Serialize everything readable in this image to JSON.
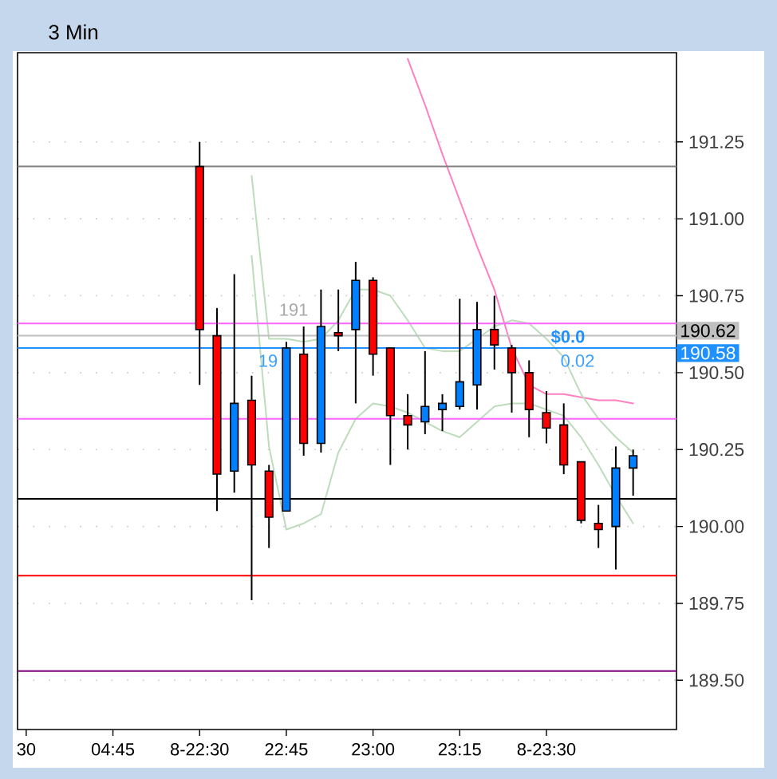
{
  "chart_data": {
    "type": "candlestick",
    "title": "3 Min",
    "categories": [
      "30",
      null,
      null,
      null,
      null,
      "04:45",
      null,
      null,
      null,
      null,
      "8-22:30",
      null,
      null,
      null,
      null,
      "22:45",
      null,
      null,
      null,
      null,
      "23:00",
      null,
      null,
      null,
      null,
      "23:15",
      null,
      null,
      null,
      null,
      "8-23:30",
      null,
      null,
      null,
      null,
      null,
      null,
      null
    ],
    "ohlc": [
      null,
      null,
      null,
      null,
      null,
      null,
      null,
      null,
      null,
      null,
      [
        191.17,
        191.25,
        190.46,
        190.64
      ],
      [
        190.62,
        190.71,
        190.05,
        190.17
      ],
      [
        190.18,
        190.82,
        190.11,
        190.4
      ],
      [
        190.41,
        190.49,
        189.76,
        190.2
      ],
      [
        190.18,
        190.2,
        189.93,
        190.03
      ],
      [
        190.05,
        190.6,
        190.05,
        190.58
      ],
      [
        190.56,
        190.65,
        190.23,
        190.27
      ],
      [
        190.27,
        190.77,
        190.24,
        190.65
      ],
      [
        190.63,
        190.77,
        190.57,
        190.62
      ],
      [
        190.64,
        190.86,
        190.4,
        190.8
      ],
      [
        190.8,
        190.81,
        190.49,
        190.56
      ],
      [
        190.58,
        190.58,
        190.2,
        190.36
      ],
      [
        190.36,
        190.43,
        190.25,
        190.33
      ],
      [
        190.34,
        190.57,
        190.3,
        190.39
      ],
      [
        190.38,
        190.43,
        190.31,
        190.4
      ],
      [
        190.39,
        190.74,
        190.38,
        190.47
      ],
      [
        190.46,
        190.73,
        190.38,
        190.64
      ],
      [
        190.64,
        190.75,
        190.51,
        190.59
      ],
      [
        190.58,
        190.59,
        190.37,
        190.5
      ],
      [
        190.5,
        190.54,
        190.29,
        190.38
      ],
      [
        190.37,
        190.44,
        190.27,
        190.32
      ],
      [
        190.33,
        190.4,
        190.17,
        190.2
      ],
      [
        190.21,
        190.21,
        190.01,
        190.02
      ],
      [
        190.01,
        190.07,
        189.93,
        189.99
      ],
      [
        190.0,
        190.26,
        189.86,
        190.19
      ],
      [
        190.19,
        190.25,
        190.1,
        190.23
      ],
      null,
      null
    ],
    "colors": [
      null,
      null,
      null,
      null,
      null,
      null,
      null,
      null,
      null,
      null,
      "#ff0000",
      "#ff0000",
      "#0080ff",
      "#ff0000",
      "#ff0000",
      "#0080ff",
      "#ff0000",
      "#0080ff",
      "#ff0000",
      "#0080ff",
      "#ff0000",
      "#ff0000",
      "#ff0000",
      "#0080ff",
      "#0080ff",
      "#0080ff",
      "#0080ff",
      "#ff0000",
      "#ff0000",
      "#ff0000",
      "#ff0000",
      "#ff0000",
      "#ff0000",
      "#ff0000",
      "#0080ff",
      "#0080ff",
      null,
      null
    ],
    "series": [
      {
        "type": "line",
        "color": "#ff80c0",
        "values": [
          null,
          null,
          null,
          null,
          null,
          null,
          null,
          null,
          null,
          null,
          null,
          null,
          null,
          null,
          null,
          null,
          null,
          null,
          null,
          null,
          null,
          null,
          191.52,
          191.37,
          191.21,
          191.06,
          190.91,
          190.77,
          190.58,
          190.46,
          190.43,
          190.43,
          190.42,
          190.41,
          190.41,
          190.4,
          null,
          null
        ]
      },
      {
        "type": "line",
        "color": "#bcdcbc",
        "values": [
          null,
          null,
          null,
          null,
          null,
          null,
          null,
          null,
          null,
          null,
          null,
          null,
          null,
          191.14,
          190.61,
          190.61,
          190.6,
          190.61,
          190.67,
          190.77,
          190.77,
          190.75,
          190.67,
          190.58,
          190.57,
          190.57,
          190.61,
          190.65,
          190.67,
          190.66,
          190.61,
          190.55,
          190.43,
          190.35,
          190.29,
          190.24,
          null,
          null
        ]
      },
      {
        "type": "line",
        "color": "#bcdcbc",
        "values": [
          null,
          null,
          null,
          null,
          null,
          null,
          null,
          null,
          null,
          null,
          null,
          null,
          null,
          190.88,
          190.26,
          189.99,
          190.01,
          190.04,
          190.24,
          190.35,
          190.4,
          190.39,
          190.37,
          190.34,
          190.31,
          190.29,
          190.34,
          190.39,
          190.4,
          190.4,
          190.38,
          190.36,
          190.29,
          190.2,
          190.1,
          190.01,
          null,
          null
        ]
      }
    ],
    "ref_lines": [
      {
        "axis": "y",
        "value": 191.17,
        "color": "#808080"
      },
      {
        "axis": "y",
        "value": 190.66,
        "color": "#ff66ff"
      },
      {
        "axis": "y",
        "value": 190.62,
        "color": "#c0c0c0",
        "label": "190.62"
      },
      {
        "axis": "y",
        "value": 190.58,
        "color": "#1e90ff",
        "label": "190.58"
      },
      {
        "axis": "y",
        "value": 190.35,
        "color": "#ff66ff"
      },
      {
        "axis": "y",
        "value": 190.09,
        "color": "#000000"
      },
      {
        "axis": "y",
        "value": 189.84,
        "color": "#ff0000"
      },
      {
        "axis": "y",
        "value": 189.53,
        "color": "#800080"
      }
    ],
    "annotations": [
      "$0.0",
      "0.02",
      "191",
      "19"
    ],
    "ylim": [
      189.34,
      191.54
    ],
    "yticks": [
      {
        "value": 189.5,
        "label": "189.50"
      },
      {
        "value": 189.75,
        "label": "189.75"
      },
      {
        "value": 190,
        "label": "190.00"
      },
      {
        "value": 190.25,
        "label": "190.25"
      },
      {
        "value": 190.5,
        "label": "190.50"
      },
      {
        "value": 190.75,
        "label": "190.75"
      },
      {
        "value": 191,
        "label": "191.00"
      },
      {
        "value": 191.25,
        "label": "191.25"
      }
    ],
    "grid": "y"
  }
}
